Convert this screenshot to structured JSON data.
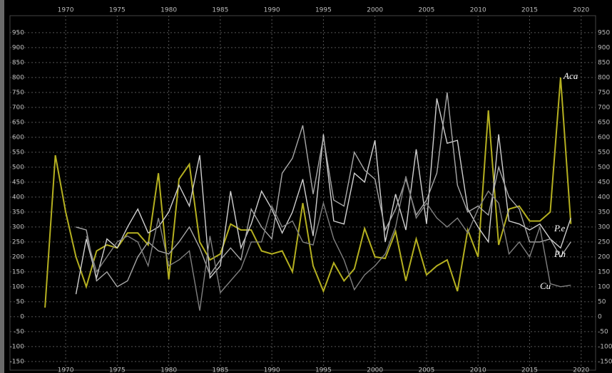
{
  "chart_data": {
    "type": "line",
    "x": [
      1968,
      1969,
      1970,
      1971,
      1972,
      1973,
      1974,
      1975,
      1976,
      1977,
      1978,
      1979,
      1980,
      1981,
      1982,
      1983,
      1984,
      1985,
      1986,
      1987,
      1988,
      1989,
      1990,
      1991,
      1992,
      1993,
      1994,
      1995,
      1996,
      1997,
      1998,
      1999,
      2000,
      2001,
      2002,
      2003,
      2004,
      2005,
      2006,
      2007,
      2008,
      2009,
      2010,
      2011,
      2012,
      2013,
      2014,
      2015,
      2016,
      2017,
      2018,
      2019
    ],
    "series": [
      {
        "name": "Aca",
        "color": "#b5b020",
        "values": [
          30,
          540,
          350,
          200,
          100,
          220,
          240,
          230,
          280,
          280,
          240,
          480,
          125,
          460,
          510,
          250,
          190,
          210,
          310,
          290,
          290,
          220,
          210,
          220,
          150,
          380,
          170,
          85,
          180,
          120,
          160,
          295,
          200,
          195,
          285,
          120,
          260,
          140,
          170,
          190,
          85,
          290,
          200,
          690,
          240,
          360,
          370,
          320,
          320,
          350,
          800,
          310
        ]
      },
      {
        "name": "P.e",
        "color": "#d0d0d0",
        "values": [
          null,
          null,
          null,
          75,
          260,
          130,
          260,
          230,
          300,
          360,
          280,
          300,
          350,
          440,
          370,
          540,
          130,
          170,
          420,
          230,
          310,
          420,
          360,
          280,
          350,
          460,
          270,
          610,
          320,
          310,
          480,
          450,
          590,
          250,
          410,
          290,
          560,
          310,
          730,
          580,
          590,
          360,
          300,
          250,
          610,
          320,
          310,
          290,
          310,
          260,
          230,
          330
        ]
      },
      {
        "name": "P.h",
        "color": "#a8a8a8",
        "values": [
          null,
          null,
          null,
          300,
          290,
          120,
          150,
          100,
          120,
          200,
          250,
          220,
          210,
          250,
          300,
          230,
          140,
          190,
          230,
          190,
          360,
          300,
          260,
          480,
          530,
          640,
          410,
          600,
          390,
          370,
          550,
          490,
          460,
          290,
          360,
          460,
          340,
          390,
          480,
          750,
          440,
          350,
          370,
          340,
          500,
          400,
          360,
          250,
          250,
          260,
          200,
          250
        ]
      },
      {
        "name": "Cu",
        "color": "#808080",
        "values": [
          null,
          null,
          null,
          null,
          270,
          150,
          200,
          250,
          270,
          250,
          170,
          330,
          170,
          190,
          220,
          20,
          270,
          80,
          120,
          160,
          250,
          250,
          370,
          300,
          320,
          250,
          240,
          380,
          260,
          190,
          90,
          140,
          170,
          210,
          300,
          470,
          330,
          380,
          330,
          300,
          330,
          280,
          360,
          420,
          380,
          210,
          250,
          200,
          300,
          110,
          100,
          105
        ]
      }
    ],
    "xlim": [
      1964.6,
      2021.4
    ],
    "ylim": [
      -179,
      1007
    ],
    "xticks": [
      1970,
      1975,
      1980,
      1985,
      1990,
      1995,
      2000,
      2005,
      2010,
      2015,
      2020
    ],
    "yticks": [
      -150,
      -100,
      -50,
      0,
      50,
      100,
      150,
      200,
      250,
      300,
      350,
      400,
      450,
      500,
      550,
      600,
      650,
      700,
      750,
      800,
      850,
      900,
      950
    ],
    "grid": true
  }
}
